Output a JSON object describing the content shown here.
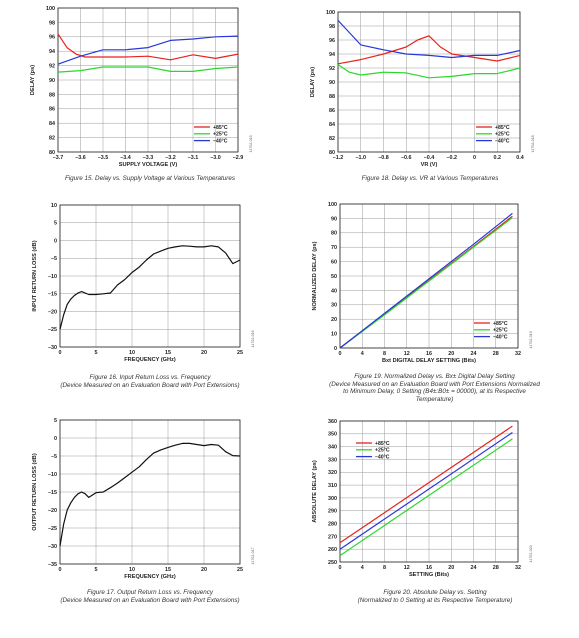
{
  "charts": [
    {
      "id": "fig15",
      "chart_data": {
        "type": "line",
        "title": "",
        "xlabel": "SUPPLY VOLTAGE (V)",
        "ylabel": "DELAY (ps)",
        "xlim": [
          -3.7,
          -2.9
        ],
        "ylim": [
          80,
          100
        ],
        "xticks": [
          -3.7,
          -3.6,
          -3.5,
          -3.4,
          -3.3,
          -3.2,
          -3.1,
          -3.0,
          -2.9
        ],
        "xticklabels": [
          "–3.7",
          "–3.6",
          "–3.5",
          "–3.4",
          "–3.3",
          "–3.2",
          "–3.1",
          "–3.0",
          "–2.9"
        ],
        "yticks": [
          80,
          82,
          84,
          86,
          88,
          90,
          92,
          94,
          96,
          98,
          100
        ],
        "yticklabels": [
          "80",
          "82",
          "84",
          "86",
          "88",
          "90",
          "92",
          "94",
          "96",
          "98",
          "100"
        ],
        "grid": true,
        "legend": "bottom-right",
        "series": [
          {
            "name": "+85°C",
            "color": "#e8231e",
            "x": [
              -3.7,
              -3.66,
              -3.62,
              -3.58,
              -3.5,
              -3.4,
              -3.3,
              -3.2,
              -3.1,
              -3.0,
              -2.9
            ],
            "y": [
              96.4,
              94.5,
              93.6,
              93.2,
              93.2,
              93.2,
              93.3,
              92.8,
              93.5,
              93.0,
              93.6
            ]
          },
          {
            "name": "+25°C",
            "color": "#2bd829",
            "x": [
              -3.7,
              -3.6,
              -3.5,
              -3.4,
              -3.3,
              -3.2,
              -3.1,
              -3.0,
              -2.9
            ],
            "y": [
              91.1,
              91.3,
              91.8,
              91.8,
              91.8,
              91.2,
              91.2,
              91.6,
              91.8
            ]
          },
          {
            "name": "–40°C",
            "color": "#2838d8",
            "x": [
              -3.7,
              -3.6,
              -3.5,
              -3.4,
              -3.3,
              -3.2,
              -3.1,
              -3.0,
              -2.9
            ],
            "y": [
              92.2,
              93.3,
              94.2,
              94.2,
              94.5,
              95.5,
              95.7,
              96.0,
              96.1
            ]
          }
        ]
      },
      "fignum": "14702-015",
      "caption": [
        "Figure 15. Delay vs. Supply Voltage at Various Temperatures"
      ]
    },
    {
      "id": "fig18",
      "chart_data": {
        "type": "line",
        "title": "",
        "xlabel": "VR (V)",
        "ylabel": "DELAY (ps)",
        "xlim": [
          -1.2,
          0.4
        ],
        "ylim": [
          80,
          100
        ],
        "xticks": [
          -1.2,
          -1.0,
          -0.8,
          -0.6,
          -0.4,
          -0.2,
          0,
          0.2,
          0.4
        ],
        "xticklabels": [
          "–1.2",
          "–1.0",
          "–0.8",
          "–0.6",
          "–0.4",
          "–0.2",
          "0",
          "0.2",
          "0.4"
        ],
        "yticks": [
          80,
          82,
          84,
          86,
          88,
          90,
          92,
          94,
          96,
          98,
          100
        ],
        "yticklabels": [
          "80",
          "82",
          "84",
          "86",
          "88",
          "90",
          "92",
          "94",
          "96",
          "98",
          "100"
        ],
        "grid": true,
        "legend": "bottom-right",
        "series": [
          {
            "name": "+85°C",
            "color": "#e8231e",
            "x": [
              -1.2,
              -1.0,
              -0.8,
              -0.6,
              -0.5,
              -0.4,
              -0.3,
              -0.2,
              0,
              0.2,
              0.4
            ],
            "y": [
              92.6,
              93.2,
              94.0,
              95.0,
              96.0,
              96.6,
              95.0,
              94.0,
              93.5,
              93.0,
              93.8
            ]
          },
          {
            "name": "+25°C",
            "color": "#2bd829",
            "x": [
              -1.2,
              -1.1,
              -1.0,
              -0.8,
              -0.6,
              -0.4,
              -0.2,
              0,
              0.2,
              0.4
            ],
            "y": [
              92.5,
              91.4,
              91.0,
              91.4,
              91.3,
              90.6,
              90.8,
              91.2,
              91.2,
              92.0
            ]
          },
          {
            "name": "–40°C",
            "color": "#2838d8",
            "x": [
              -1.2,
              -1.0,
              -0.8,
              -0.6,
              -0.4,
              -0.2,
              0,
              0.2,
              0.4
            ],
            "y": [
              98.8,
              95.3,
              94.6,
              94.0,
              93.8,
              93.5,
              93.8,
              93.8,
              94.5
            ]
          }
        ]
      },
      "fignum": "14702-018",
      "caption": [
        "Figure 18. Delay vs. VR at Various Temperatures"
      ]
    },
    {
      "id": "fig16",
      "chart_data": {
        "type": "line",
        "title": "",
        "xlabel": "FREQUENCY (GHz)",
        "ylabel": "INPUT RETURN LOSS (dB)",
        "xlim": [
          0,
          25
        ],
        "ylim": [
          -30,
          10
        ],
        "xticks": [
          0,
          5,
          10,
          15,
          20,
          25
        ],
        "xticklabels": [
          "0",
          "5",
          "10",
          "15",
          "20",
          "25"
        ],
        "yticks": [
          -30,
          -25,
          -20,
          -15,
          -10,
          -5,
          0,
          5,
          10
        ],
        "yticklabels": [
          "–30",
          "–25",
          "–20",
          "–15",
          "–10",
          "–5",
          "0",
          "5",
          "10"
        ],
        "grid": true,
        "legend": "none",
        "series": [
          {
            "name": "",
            "color": "#111111",
            "x": [
              0,
              0.5,
              1,
              1.5,
              2,
              2.5,
              3,
              3.5,
              4,
              5,
              6,
              7,
              8,
              9,
              10,
              11,
              12,
              13,
              14,
              15,
              16,
              17,
              18,
              19,
              20,
              21,
              22,
              23,
              24,
              25
            ],
            "y": [
              -25,
              -21,
              -18,
              -16.5,
              -15.5,
              -14.8,
              -14.4,
              -14.8,
              -15.2,
              -15.2,
              -15.0,
              -14.8,
              -12.5,
              -11,
              -9,
              -7.5,
              -5.5,
              -3.8,
              -3.0,
              -2.2,
              -1.8,
              -1.5,
              -1.6,
              -1.8,
              -1.8,
              -1.5,
              -1.8,
              -3.5,
              -6.5,
              -5.5
            ]
          }
        ]
      },
      "fignum": "14702-016",
      "caption": [
        "Figure 16. Input Return Loss vs. Frequency",
        "(Device Measured on an Evaluation Board with Port Extensions)"
      ]
    },
    {
      "id": "fig19",
      "chart_data": {
        "type": "line",
        "title": "",
        "xlabel": "Bxt DIGITAL DELAY SETTING (Bits)",
        "ylabel": "NORMALIZED DELAY (ps)",
        "xlim": [
          0,
          32
        ],
        "ylim": [
          0,
          100
        ],
        "xticks": [
          0,
          4,
          8,
          12,
          16,
          20,
          24,
          28,
          32
        ],
        "xticklabels": [
          "0",
          "4",
          "8",
          "12",
          "16",
          "20",
          "24",
          "28",
          "32"
        ],
        "yticks": [
          0,
          10,
          20,
          30,
          40,
          50,
          60,
          70,
          80,
          90,
          100
        ],
        "yticklabels": [
          "0",
          "10",
          "20",
          "30",
          "40",
          "50",
          "60",
          "70",
          "80",
          "90",
          "100"
        ],
        "grid": true,
        "legend": "bottom-right",
        "series": [
          {
            "name": "+85°C",
            "color": "#e8231e",
            "x": [
              0,
              8,
              16,
              24,
              31
            ],
            "y": [
              0,
              23.5,
              47,
              70.5,
              91.5
            ]
          },
          {
            "name": "+25°C",
            "color": "#2bd829",
            "x": [
              0,
              8,
              16,
              24,
              31
            ],
            "y": [
              0,
              23.0,
              46.5,
              70,
              90.5
            ]
          },
          {
            "name": "–40°C",
            "color": "#2838d8",
            "x": [
              0,
              8,
              16,
              24,
              31
            ],
            "y": [
              0,
              24.0,
              48,
              72,
              93.5
            ]
          }
        ]
      },
      "fignum": "14702-019",
      "caption": [
        "Figure 19. Normalized Delay vs. Bx± Digital Delay Setting",
        "(Device Measured on an Evaluation Board with Port Extensions Normalized",
        "to Minimum Delay, 0 Setting (B4±:B0± = 00000), at its Respective",
        "Temperature)"
      ]
    },
    {
      "id": "fig17",
      "chart_data": {
        "type": "line",
        "title": "",
        "xlabel": "FREQUENCY (GHz)",
        "ylabel": "OUTPUT RETURN LOSS (dB)",
        "xlim": [
          0,
          25
        ],
        "ylim": [
          -35,
          5
        ],
        "xticks": [
          0,
          5,
          10,
          15,
          20,
          25
        ],
        "xticklabels": [
          "0",
          "5",
          "10",
          "15",
          "20",
          "25"
        ],
        "yticks": [
          -35,
          -30,
          -25,
          -20,
          -15,
          -10,
          -5,
          0,
          5
        ],
        "yticklabels": [
          "–35",
          "–30",
          "–25",
          "–20",
          "–15",
          "–10",
          "–5",
          "0",
          "5"
        ],
        "grid": true,
        "legend": "none",
        "series": [
          {
            "name": "",
            "color": "#111111",
            "x": [
              0,
              0.5,
              1,
              1.5,
              2,
              2.5,
              3,
              3.5,
              4,
              5,
              6,
              7,
              8,
              9,
              10,
              11,
              12,
              13,
              14,
              15,
              16,
              17,
              18,
              19,
              20,
              21,
              22,
              23,
              24,
              25
            ],
            "y": [
              -30,
              -24,
              -20,
              -18,
              -16.5,
              -15.5,
              -15.0,
              -15.5,
              -16.5,
              -15.2,
              -15.0,
              -13.8,
              -12.5,
              -11,
              -9.5,
              -8,
              -6,
              -4.2,
              -3.3,
              -2.6,
              -2.0,
              -1.5,
              -1.5,
              -1.8,
              -2.1,
              -1.8,
              -2.0,
              -3.8,
              -4.9,
              -5.0
            ]
          }
        ]
      },
      "fignum": "14702-017",
      "caption": [
        "Figure 17. Output Return Loss vs. Frequency",
        "(Device Measured on an Evaluation Board with Port Extensions)"
      ]
    },
    {
      "id": "fig20",
      "chart_data": {
        "type": "line",
        "title": "",
        "xlabel": "SETTING (Bits)",
        "ylabel": "ABSOLUTE DELAY (ps)",
        "xlim": [
          0,
          32
        ],
        "ylim": [
          250,
          360
        ],
        "xticks": [
          0,
          4,
          8,
          12,
          16,
          20,
          24,
          28,
          32
        ],
        "xticklabels": [
          "0",
          "4",
          "8",
          "12",
          "16",
          "20",
          "24",
          "28",
          "32"
        ],
        "yticks": [
          250,
          260,
          270,
          280,
          290,
          300,
          310,
          320,
          330,
          340,
          350,
          360
        ],
        "yticklabels": [
          "250",
          "260",
          "270",
          "280",
          "290",
          "300",
          "310",
          "320",
          "330",
          "340",
          "350",
          "360"
        ],
        "grid": true,
        "legend": "top-left",
        "series": [
          {
            "name": "+85°C",
            "color": "#e8231e",
            "x": [
              0,
              31
            ],
            "y": [
              265,
              356
            ]
          },
          {
            "name": "+25°C",
            "color": "#2bd829",
            "x": [
              0,
              31
            ],
            "y": [
              255,
              346
            ]
          },
          {
            "name": "–40°C",
            "color": "#2838d8",
            "x": [
              0,
              31
            ],
            "y": [
              260,
              351
            ]
          }
        ]
      },
      "fignum": "14702-020",
      "caption": [
        "Figure 20. Absolute Delay vs. Setting",
        "(Normalized to 0 Setting at its Respective Temperature)"
      ]
    }
  ]
}
